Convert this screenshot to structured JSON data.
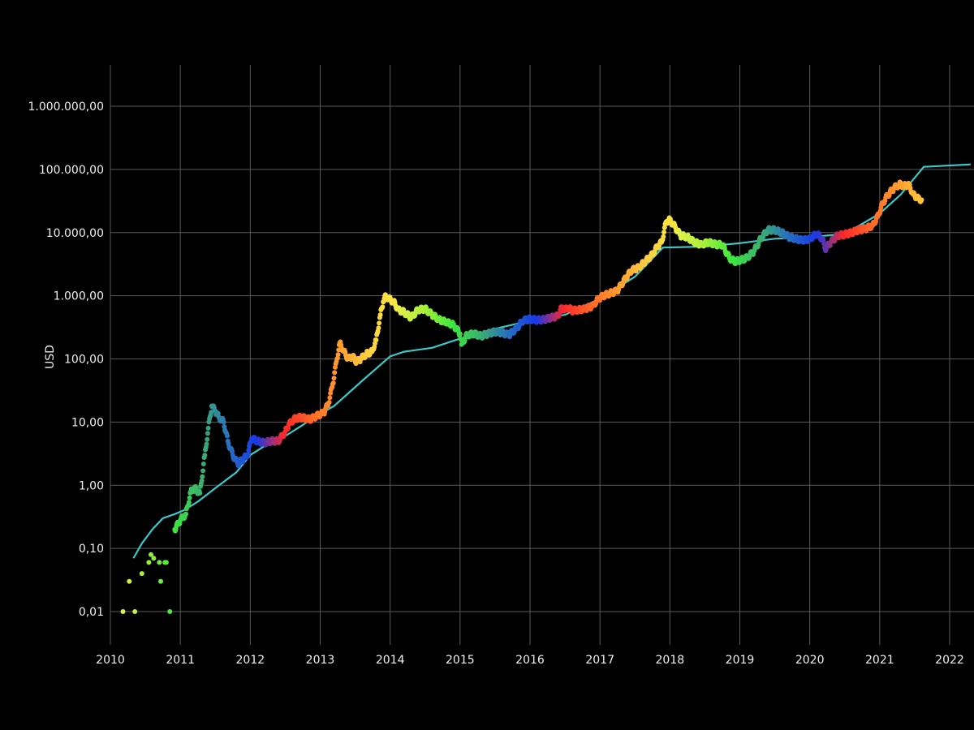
{
  "chart_data": {
    "type": "scatter",
    "title": "",
    "xlabel": "",
    "ylabel": "USD",
    "y_scale": "log",
    "xlim": [
      2010,
      2022.3
    ],
    "ylim": [
      0.01,
      1000000
    ],
    "grid": true,
    "legend": "none",
    "x_ticks": [
      2010,
      2011,
      2012,
      2013,
      2014,
      2015,
      2016,
      2017,
      2018,
      2019,
      2020,
      2021,
      2022
    ],
    "x_tick_labels": [
      "2010",
      "2011",
      "2012",
      "2013",
      "2014",
      "2015",
      "2016",
      "2017",
      "2018",
      "2019",
      "2020",
      "2021",
      "2022"
    ],
    "y_ticks": [
      0.01,
      0.1,
      1,
      10,
      100,
      1000,
      10000,
      100000,
      1000000
    ],
    "y_tick_labels": [
      "0,01",
      "0,10",
      "1,00",
      "10,00",
      "100,00",
      "1.000,00",
      "10.000,00",
      "100.000,00",
      "1.000.000,00"
    ],
    "colors": {
      "background": "#000000",
      "grid": "#5a5a5a",
      "model_line": "#3cc8c8",
      "price_gradient": [
        "#e8f04a",
        "#a8f03a",
        "#3ce83c",
        "#3cb070",
        "#2870c0",
        "#1838e8",
        "#ff2828",
        "#ff6a28",
        "#ffa030",
        "#ffd040",
        "#f8e840"
      ]
    },
    "series": [
      {
        "style": "line",
        "color": "#3cc8c8",
        "x": [
          2010.33,
          2010.45,
          2010.6,
          2010.75,
          2010.92,
          2011.05,
          2011.25,
          2011.5,
          2011.8,
          2012.0,
          2012.25,
          2012.5,
          2012.75,
          2012.92,
          2013.2,
          2013.6,
          2014.0,
          2014.2,
          2014.6,
          2015.0,
          2015.5,
          2016.0,
          2016.5,
          2017.0,
          2017.5,
          2017.9,
          2018.5,
          2019.0,
          2019.5,
          2020.0,
          2020.5,
          2021.0,
          2021.3,
          2021.63,
          2022.3
        ],
        "y": [
          0.07,
          0.12,
          0.2,
          0.3,
          0.35,
          0.4,
          0.55,
          0.9,
          1.6,
          3.0,
          4.5,
          6.0,
          9.0,
          12.0,
          18.0,
          45.0,
          110.0,
          130.0,
          150.0,
          210.0,
          300.0,
          400.0,
          500.0,
          900.0,
          2000.0,
          5800.0,
          6000.0,
          6800.0,
          8000.0,
          8500.0,
          9500.0,
          20000.0,
          40000.0,
          110000.0,
          120000.0
        ]
      },
      {
        "style": "scatter",
        "x": [
          2010.18,
          2010.27,
          2010.35,
          2010.45,
          2010.55,
          2010.58,
          2010.62,
          2010.7,
          2010.72,
          2010.78,
          2010.8,
          2010.85,
          2010.92,
          2011.0,
          2011.08,
          2011.15,
          2011.2,
          2011.28,
          2011.35,
          2011.4,
          2011.45,
          2011.5,
          2011.55,
          2011.62,
          2011.68,
          2011.75,
          2011.82,
          2011.9,
          2011.96,
          2012.02,
          2012.1,
          2012.2,
          2012.3,
          2012.4,
          2012.5,
          2012.55,
          2012.62,
          2012.7,
          2012.78,
          2012.85,
          2012.92,
          2012.98,
          2013.05,
          2013.12,
          2013.18,
          2013.24,
          2013.28,
          2013.34,
          2013.4,
          2013.46,
          2013.52,
          2013.58,
          2013.66,
          2013.74,
          2013.8,
          2013.86,
          2013.9,
          2013.94,
          2013.98,
          2014.05,
          2014.12,
          2014.2,
          2014.3,
          2014.4,
          2014.5,
          2014.6,
          2014.7,
          2014.8,
          2014.9,
          2015.0,
          2015.02,
          2015.1,
          2015.2,
          2015.3,
          2015.4,
          2015.5,
          2015.6,
          2015.7,
          2015.8,
          2015.9,
          2016.0,
          2016.1,
          2016.2,
          2016.3,
          2016.4,
          2016.45,
          2016.5,
          2016.55,
          2016.6,
          2016.7,
          2016.8,
          2016.9,
          2016.98,
          2017.05,
          2017.15,
          2017.25,
          2017.35,
          2017.45,
          2017.55,
          2017.65,
          2017.75,
          2017.82,
          2017.88,
          2017.95,
          2018.0,
          2018.08,
          2018.15,
          2018.25,
          2018.35,
          2018.45,
          2018.55,
          2018.65,
          2018.75,
          2018.85,
          2018.92,
          2019.0,
          2019.1,
          2019.2,
          2019.3,
          2019.4,
          2019.5,
          2019.6,
          2019.7,
          2019.8,
          2019.9,
          2020.0,
          2020.1,
          2020.18,
          2020.22,
          2020.3,
          2020.4,
          2020.5,
          2020.6,
          2020.7,
          2020.8,
          2020.9,
          2020.97,
          2021.05,
          2021.12,
          2021.2,
          2021.28,
          2021.35,
          2021.42,
          2021.48,
          2021.55,
          2021.6
        ],
        "y": [
          0.01,
          0.03,
          0.01,
          0.04,
          0.06,
          0.08,
          0.07,
          0.06,
          0.03,
          0.06,
          0.06,
          0.01,
          0.2,
          0.28,
          0.35,
          0.8,
          0.9,
          0.75,
          3.0,
          8.0,
          18.0,
          15.0,
          12.0,
          10.0,
          5.0,
          3.0,
          2.2,
          2.6,
          3.0,
          5.5,
          5.0,
          4.7,
          5.0,
          5.0,
          7.0,
          9.0,
          11.0,
          12.0,
          11.5,
          11.0,
          12.0,
          13.0,
          14.0,
          20.0,
          40.0,
          100.0,
          180.0,
          130.0,
          100.0,
          110.0,
          90.0,
          100.0,
          120.0,
          130.0,
          200.0,
          500.0,
          800.0,
          1000.0,
          900.0,
          800.0,
          600.0,
          550.0,
          450.0,
          600.0,
          620.0,
          500.0,
          420.0,
          380.0,
          350.0,
          250.0,
          170.0,
          240.0,
          250.0,
          230.0,
          250.0,
          270.0,
          260.0,
          240.0,
          300.0,
          400.0,
          430.0,
          410.0,
          420.0,
          450.0,
          480.0,
          650.0,
          600.0,
          650.0,
          580.0,
          600.0,
          620.0,
          700.0,
          900.0,
          1000.0,
          1100.0,
          1200.0,
          1800.0,
          2500.0,
          2800.0,
          3500.0,
          4500.0,
          6000.0,
          7000.0,
          15000.0,
          16000.0,
          12000.0,
          9000.0,
          8500.0,
          7000.0,
          6500.0,
          7000.0,
          6500.0,
          6400.0,
          4000.0,
          3500.0,
          3600.0,
          4000.0,
          5000.0,
          8000.0,
          11000.0,
          11000.0,
          10000.0,
          8500.0,
          8000.0,
          7500.0,
          8000.0,
          9500.0,
          8000.0,
          5500.0,
          7000.0,
          9000.0,
          9300.0,
          10000.0,
          11000.0,
          11500.0,
          13000.0,
          18000.0,
          30000.0,
          40000.0,
          50000.0,
          58000.0,
          55000.0,
          57000.0,
          40000.0,
          35000.0,
          33000.0
        ]
      }
    ]
  }
}
